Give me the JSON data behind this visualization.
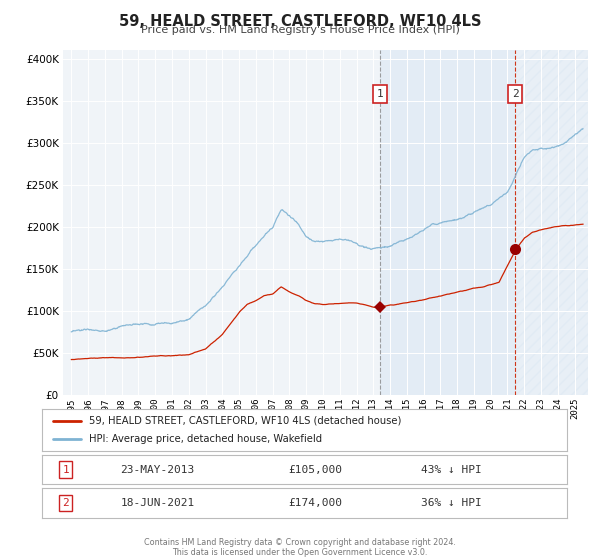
{
  "title": "59, HEALD STREET, CASTLEFORD, WF10 4LS",
  "subtitle": "Price paid vs. HM Land Registry's House Price Index (HPI)",
  "legend_line1": "59, HEALD STREET, CASTLEFORD, WF10 4LS (detached house)",
  "legend_line2": "HPI: Average price, detached house, Wakefield",
  "marker1_date": 2013.39,
  "marker1_label": "1",
  "marker1_date_str": "23-MAY-2013",
  "marker1_price": 105000,
  "marker1_pct": "43% ↓ HPI",
  "marker2_date": 2021.46,
  "marker2_label": "2",
  "marker2_date_str": "18-JUN-2021",
  "marker2_price": 174000,
  "marker2_pct": "36% ↓ HPI",
  "hpi_color": "#7fb3d3",
  "price_color": "#cc2200",
  "marker_color": "#990000",
  "footer": "Contains HM Land Registry data © Crown copyright and database right 2024.\nThis data is licensed under the Open Government Licence v3.0.",
  "ylim": [
    0,
    410000
  ],
  "xlim_start": 1994.5,
  "xlim_end": 2025.8,
  "shaded_region_start": 2013.39,
  "shaded_region_end": 2021.46,
  "hpi_anchors_x": [
    1995,
    1995.5,
    1996,
    1997,
    1998,
    1999,
    2000,
    2001,
    2002,
    2003,
    2004,
    2005,
    2006,
    2007,
    2007.5,
    2008,
    2008.5,
    2009,
    2009.5,
    2010,
    2010.5,
    2011,
    2011.5,
    2012,
    2012.5,
    2013,
    2013.5,
    2014,
    2014.5,
    2015,
    2015.5,
    2016,
    2016.5,
    2017,
    2017.5,
    2018,
    2018.5,
    2019,
    2019.5,
    2020,
    2020.5,
    2021,
    2021.5,
    2022,
    2022.5,
    2023,
    2023.5,
    2024,
    2024.5,
    2025,
    2025.5
  ],
  "hpi_anchors_y": [
    75000,
    74000,
    75000,
    77000,
    78000,
    79000,
    81000,
    82000,
    90000,
    105000,
    130000,
    158000,
    182000,
    205000,
    225000,
    218000,
    210000,
    195000,
    190000,
    192000,
    196000,
    198000,
    196000,
    194000,
    190000,
    188000,
    190000,
    193000,
    198000,
    202000,
    208000,
    213000,
    218000,
    222000,
    226000,
    228000,
    232000,
    235000,
    238000,
    240000,
    248000,
    255000,
    275000,
    295000,
    305000,
    308000,
    305000,
    308000,
    312000,
    318000,
    325000
  ],
  "price_anchors_x": [
    1995,
    1995.5,
    1996,
    1997,
    1998,
    1999,
    2000,
    2001,
    2002,
    2003,
    2004,
    2004.5,
    2005,
    2005.5,
    2006,
    2006.5,
    2007,
    2007.5,
    2008,
    2008.5,
    2009,
    2009.5,
    2010,
    2010.5,
    2011,
    2011.5,
    2012,
    2012.5,
    2013,
    2013.4,
    2014,
    2014.5,
    2015,
    2015.5,
    2016,
    2016.5,
    2017,
    2017.5,
    2018,
    2018.5,
    2019,
    2019.5,
    2020,
    2020.5,
    2021,
    2021.5,
    2022,
    2022.5,
    2023,
    2023.5,
    2024,
    2024.5,
    2025,
    2025.5
  ],
  "price_anchors_y": [
    42000,
    42500,
    43000,
    44000,
    44500,
    45000,
    46000,
    47000,
    48000,
    55000,
    72000,
    85000,
    98000,
    108000,
    112000,
    118000,
    120000,
    128000,
    122000,
    118000,
    112000,
    108000,
    107000,
    108000,
    109000,
    110000,
    110000,
    108000,
    105000,
    105000,
    107000,
    108000,
    110000,
    112000,
    114000,
    116000,
    118000,
    120000,
    122000,
    124000,
    127000,
    129000,
    132000,
    135000,
    155000,
    174000,
    188000,
    195000,
    198000,
    200000,
    202000,
    203000,
    204000,
    205000
  ]
}
